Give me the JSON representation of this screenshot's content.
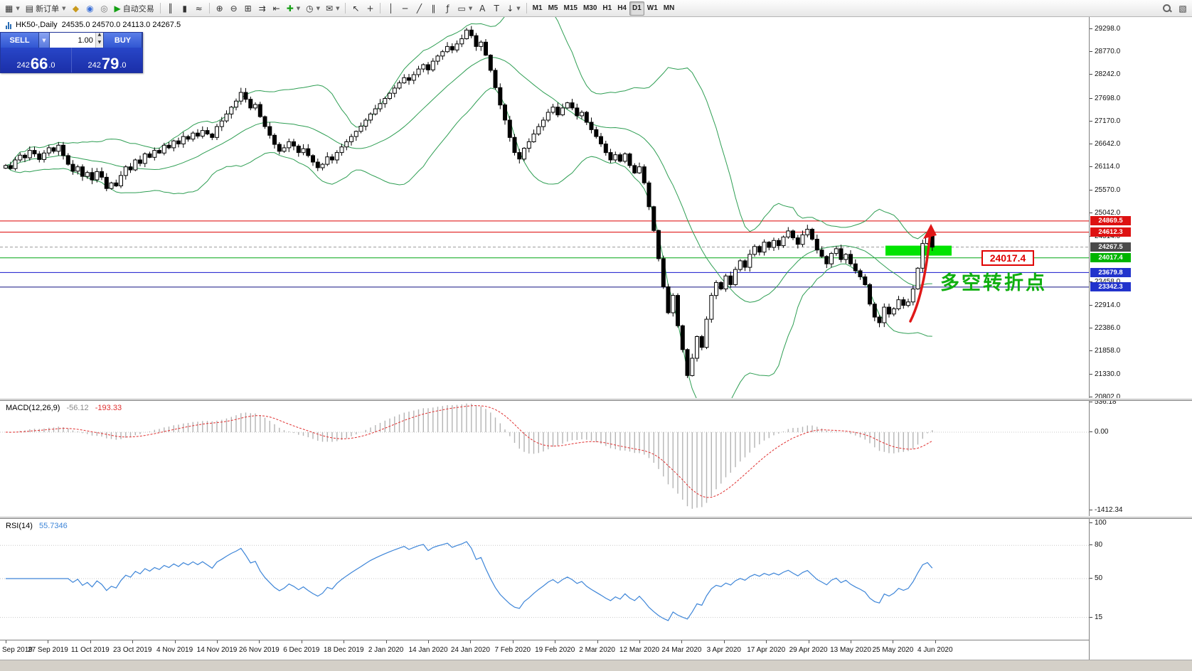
{
  "toolbar": {
    "items": [
      {
        "name": "new-chart-button",
        "glyph": "▦",
        "dd": true
      },
      {
        "name": "new-order-button",
        "glyph": "▤",
        "label": "新订单",
        "dd": true
      },
      {
        "name": "profiles-button",
        "glyph": "◆",
        "color": "#c99a1d"
      },
      {
        "name": "market-watch-button",
        "glyph": "◉",
        "color": "#3a6fd8"
      },
      {
        "name": "data-window-button",
        "glyph": "◎",
        "color": "#777777"
      },
      {
        "name": "autotrading-button",
        "glyph": "▶",
        "color": "#14a014",
        "label": "自动交易"
      },
      {
        "sep": true
      },
      {
        "name": "bar-chart-button",
        "glyph": "║"
      },
      {
        "name": "candlestick-chart-button",
        "glyph": "▮"
      },
      {
        "name": "line-chart-button",
        "glyph": "≈"
      },
      {
        "sep": true
      },
      {
        "name": "zoom-in-button",
        "glyph": "⊕"
      },
      {
        "name": "zoom-out-button",
        "glyph": "⊖"
      },
      {
        "name": "tile-windows-button",
        "glyph": "⊞"
      },
      {
        "name": "auto-scroll-button",
        "glyph": "⇉"
      },
      {
        "name": "chart-shift-button",
        "glyph": "⇤"
      },
      {
        "name": "indicators-button",
        "glyph": "✚",
        "color": "#18a018",
        "dd": true
      },
      {
        "name": "periods-button",
        "glyph": "◷",
        "dd": true
      },
      {
        "name": "templates-button",
        "glyph": "✉",
        "dd": true
      },
      {
        "sep": true
      },
      {
        "name": "cursor-button",
        "glyph": "↖"
      },
      {
        "name": "crosshair-button",
        "glyph": "+"
      },
      {
        "sep": true
      },
      {
        "name": "vertical-line-button",
        "glyph": "│"
      },
      {
        "name": "horizontal-line-button",
        "glyph": "─"
      },
      {
        "name": "trendline-button",
        "glyph": "╱"
      },
      {
        "name": "equidistant-channel-button",
        "glyph": "∥"
      },
      {
        "name": "fibonacci-button",
        "glyph": "ƒ"
      },
      {
        "name": "shapes-button",
        "glyph": "▭",
        "dd": true
      },
      {
        "name": "text-button",
        "glyph": "A"
      },
      {
        "name": "text-label-button",
        "glyph": "T"
      },
      {
        "name": "arrows-button",
        "glyph": "↓",
        "dd": true
      },
      {
        "sep": true
      },
      {
        "name": "timeframe-m1",
        "tf": "M1"
      },
      {
        "name": "timeframe-m5",
        "tf": "M5"
      },
      {
        "name": "timeframe-m15",
        "tf": "M15"
      },
      {
        "name": "timeframe-m30",
        "tf": "M30"
      },
      {
        "name": "timeframe-h1",
        "tf": "H1"
      },
      {
        "name": "timeframe-h4",
        "tf": "H4"
      },
      {
        "name": "timeframe-d1",
        "tf": "D1",
        "active": true
      },
      {
        "name": "timeframe-w1",
        "tf": "W1"
      },
      {
        "name": "timeframe-mn",
        "tf": "MN"
      }
    ],
    "right_items": [
      {
        "name": "search-symbol-button",
        "mag": true
      },
      {
        "name": "chart-layout-button",
        "glyph": "▧"
      }
    ]
  },
  "chart": {
    "symbol_period": "HK50-,Daily",
    "ohlc": "24535.0 24570.0 24113.0 24267.5",
    "trade": {
      "sell_label": "SELL",
      "buy_label": "BUY",
      "lot": "1.00",
      "sell_price": "24266.0",
      "buy_price": "24279.0"
    },
    "levels": [
      {
        "price": 24869.5,
        "label": "24869.5",
        "line_color": "#dd0000",
        "tag_bg": "#dd1111",
        "style": "solid"
      },
      {
        "price": 24612.3,
        "label": "24612.3",
        "line_color": "#dd0000",
        "tag_bg": "#dd1111",
        "style": "solid"
      },
      {
        "price": 24267.5,
        "label": "24267.5",
        "line_color": "#999999",
        "tag_bg": "#4a4a4a",
        "style": "dashed"
      },
      {
        "price": 24017.4,
        "label": "24017.4",
        "line_color": "#00a514",
        "tag_bg": "#00b400",
        "style": "solid"
      },
      {
        "price": 23679.8,
        "label": "23679.8",
        "line_color": "#1515cc",
        "tag_bg": "#2233cc",
        "style": "solid"
      },
      {
        "price": 23342.3,
        "label": "23342.3",
        "line_color": "#101080",
        "tag_bg": "#2233cc",
        "style": "solid"
      }
    ],
    "price_axis": [
      "29298.0",
      "28770.0",
      "28242.0",
      "27698.0",
      "27170.0",
      "26642.0",
      "26114.0",
      "25570.0",
      "25042.0",
      "24514.0",
      "23458.0",
      "22914.0",
      "22386.0",
      "21858.0",
      "21330.0",
      "20802.0"
    ],
    "time_axis": [
      "Sep 2019",
      "27 Sep 2019",
      "11 Oct 2019",
      "23 Oct 2019",
      "4 Nov 2019",
      "14 Nov 2019",
      "26 Nov 2019",
      "6 Dec 2019",
      "18 Dec 2019",
      "2 Jan 2020",
      "14 Jan 2020",
      "24 Jan 2020",
      "7 Feb 2020",
      "19 Feb 2020",
      "2 Mar 2020",
      "12 Mar 2020",
      "24 Mar 2020",
      "3 Apr 2020",
      "17 Apr 2020",
      "29 Apr 2020",
      "13 May 2020",
      "25 May 2020",
      "4 Jun 2020"
    ],
    "annotations": {
      "level_label": "24017.4",
      "note": "多空转折点",
      "note_color": "#0faf0f",
      "box_color": "#00e400",
      "box_price_top": 24300,
      "box_price_bottom": 24070,
      "arrow_color": "#e01818"
    }
  },
  "chart_data": {
    "type": "candlestick",
    "symbol": "HK50-",
    "timeframe": "Daily",
    "current_ohlc": {
      "open": 24535.0,
      "high": 24570.0,
      "low": 24113.0,
      "close": 24267.5
    },
    "bid": 24266.0,
    "ask": 24279.0,
    "price_range_top": 29580,
    "price_range_bottom": 20780,
    "closes": [
      26150,
      26080,
      26280,
      26390,
      26330,
      26500,
      26420,
      26290,
      26440,
      26560,
      26480,
      26620,
      26380,
      26180,
      26020,
      26120,
      25900,
      25990,
      25820,
      26010,
      25880,
      25620,
      25750,
      25680,
      25920,
      26120,
      26050,
      26280,
      26200,
      26420,
      26340,
      26500,
      26440,
      26620,
      26560,
      26720,
      26650,
      26820,
      26760,
      26900,
      26830,
      26960,
      26880,
      26800,
      27050,
      27180,
      27340,
      27500,
      27640,
      27840,
      27680,
      27480,
      27560,
      27280,
      27050,
      26850,
      26640,
      26480,
      26560,
      26700,
      26600,
      26450,
      26540,
      26380,
      26230,
      26100,
      26180,
      26350,
      26280,
      26450,
      26580,
      26700,
      26820,
      26940,
      27060,
      27200,
      27340,
      27460,
      27580,
      27700,
      27820,
      27940,
      28060,
      28180,
      28120,
      28250,
      28380,
      28480,
      28360,
      28560,
      28680,
      28780,
      28900,
      28820,
      28960,
      29080,
      29280,
      29150,
      28900,
      29000,
      28700,
      28350,
      27950,
      27550,
      27200,
      26800,
      26450,
      26300,
      26550,
      26700,
      26880,
      27050,
      27200,
      27380,
      27500,
      27320,
      27480,
      27600,
      27480,
      27300,
      27380,
      27150,
      26980,
      26820,
      26650,
      26450,
      26280,
      26400,
      26250,
      26420,
      26150,
      25980,
      26120,
      25750,
      25200,
      24650,
      24000,
      23350,
      22750,
      23150,
      22450,
      21900,
      21300,
      21700,
      22200,
      21950,
      22600,
      23150,
      23450,
      23300,
      23600,
      23400,
      23750,
      23950,
      23800,
      24100,
      24280,
      24150,
      24380,
      24260,
      24420,
      24300,
      24500,
      24640,
      24480,
      24330,
      24550,
      24680,
      24450,
      24200,
      24050,
      23880,
      24120,
      24230,
      23980,
      24100,
      23880,
      23720,
      23580,
      23400,
      22950,
      22650,
      22520,
      22880,
      22720,
      22840,
      23050,
      22920,
      23000,
      23300,
      23780,
      24350,
      24535,
      24267.5
    ],
    "indicators": {
      "bollinger": {
        "period": 20,
        "deviation": 2,
        "color": "#2e9e53"
      },
      "macd": {
        "label": "MACD(12,26,9)",
        "fast": 12,
        "slow": 26,
        "signal": 9,
        "value1": "-56.12",
        "value2": "-193.33",
        "axis": [
          536.18,
          0.0,
          -1412.34
        ],
        "hist_color": "#b4b4b4",
        "signal_color": "#e03030"
      },
      "rsi": {
        "label": "RSI(14)",
        "period": 14,
        "value": "55.7346",
        "axis": [
          100,
          80,
          50,
          15
        ],
        "levels": [
          80,
          50,
          15
        ],
        "line_color": "#3d85d8"
      }
    },
    "candle_colors": {
      "up": "#ffffff",
      "down": "#000000",
      "border": "#000000"
    }
  }
}
